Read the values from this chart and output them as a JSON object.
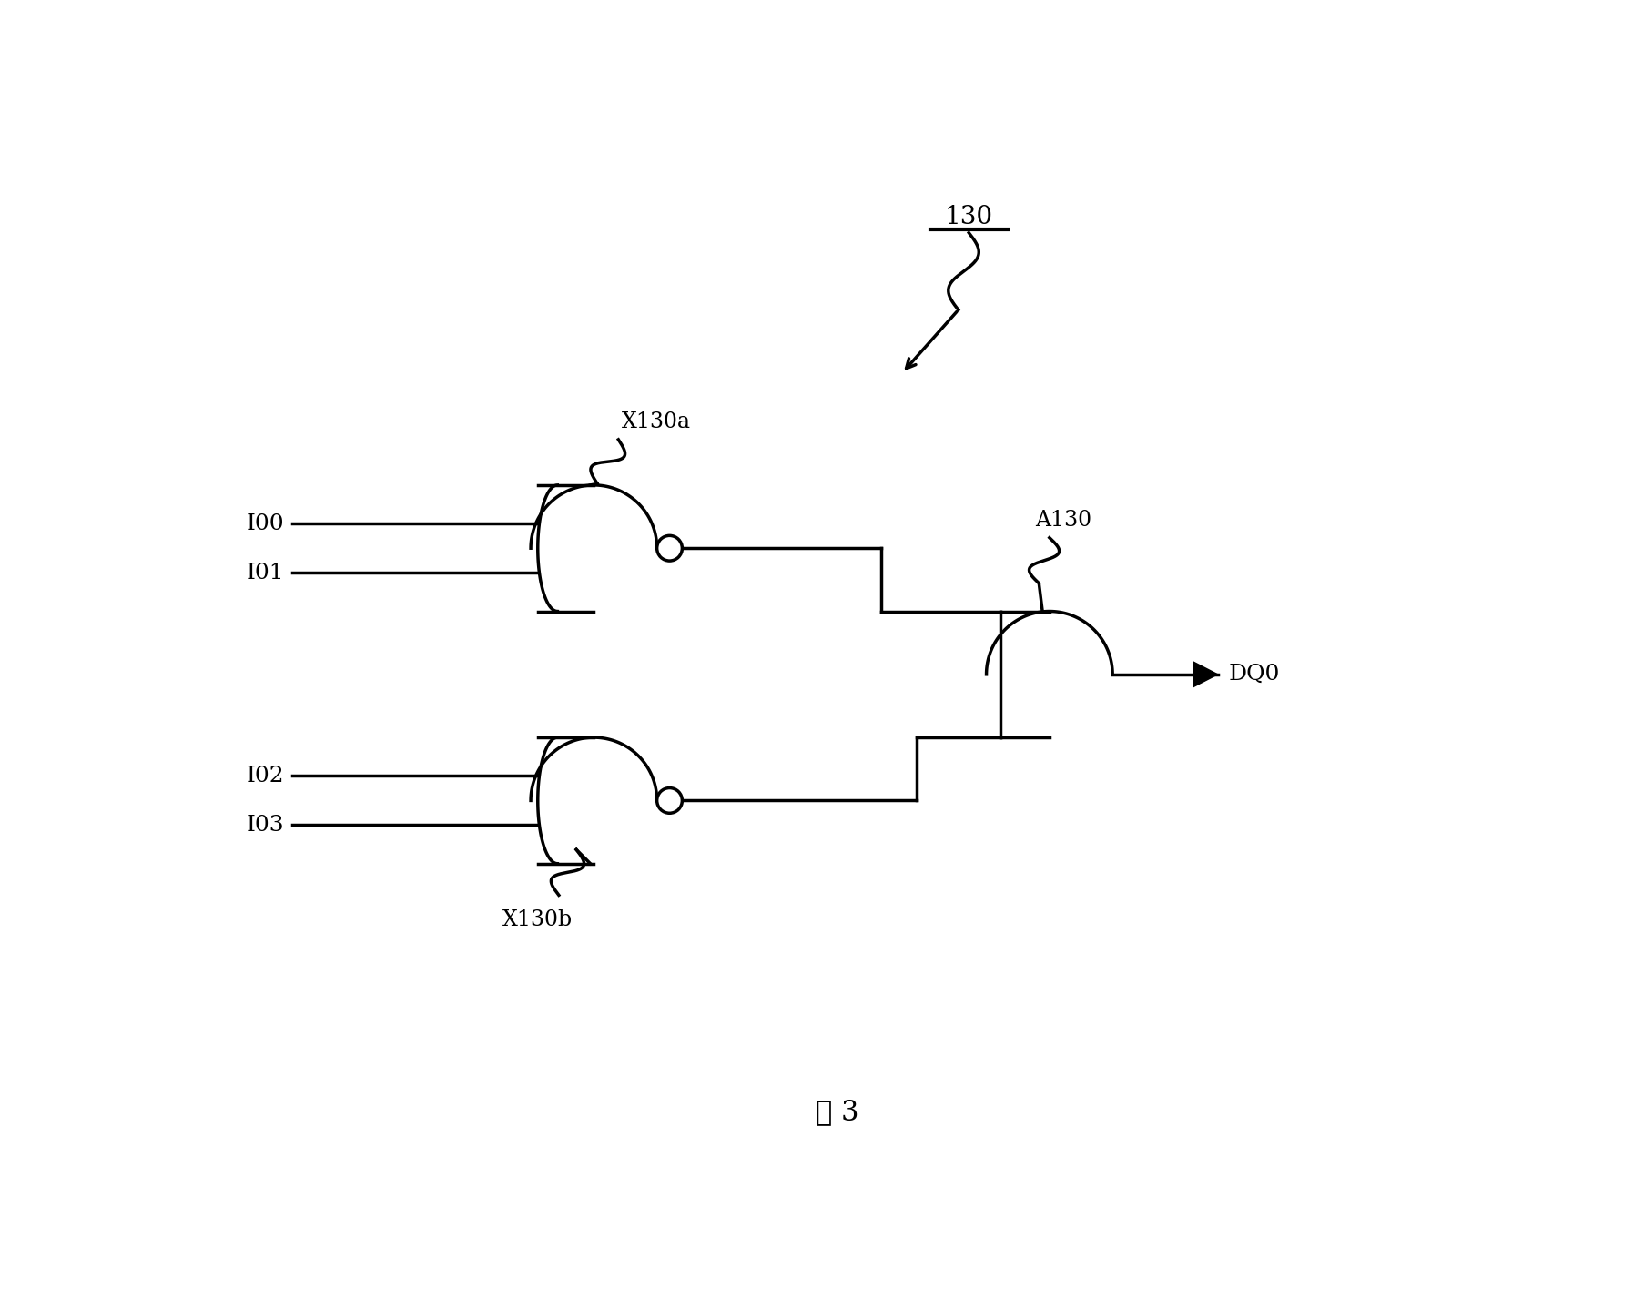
{
  "background_color": "#ffffff",
  "caption": "图 3",
  "caption_fontsize": 22,
  "label_130": "130",
  "label_X130a": "X130a",
  "label_X130b": "X130b",
  "label_A130": "A130",
  "label_DQ0": "DQ0",
  "label_I00": "I00",
  "label_I01": "I01",
  "label_I02": "I02",
  "label_I03": "I03",
  "line_color": "#000000",
  "line_width": 2.5
}
